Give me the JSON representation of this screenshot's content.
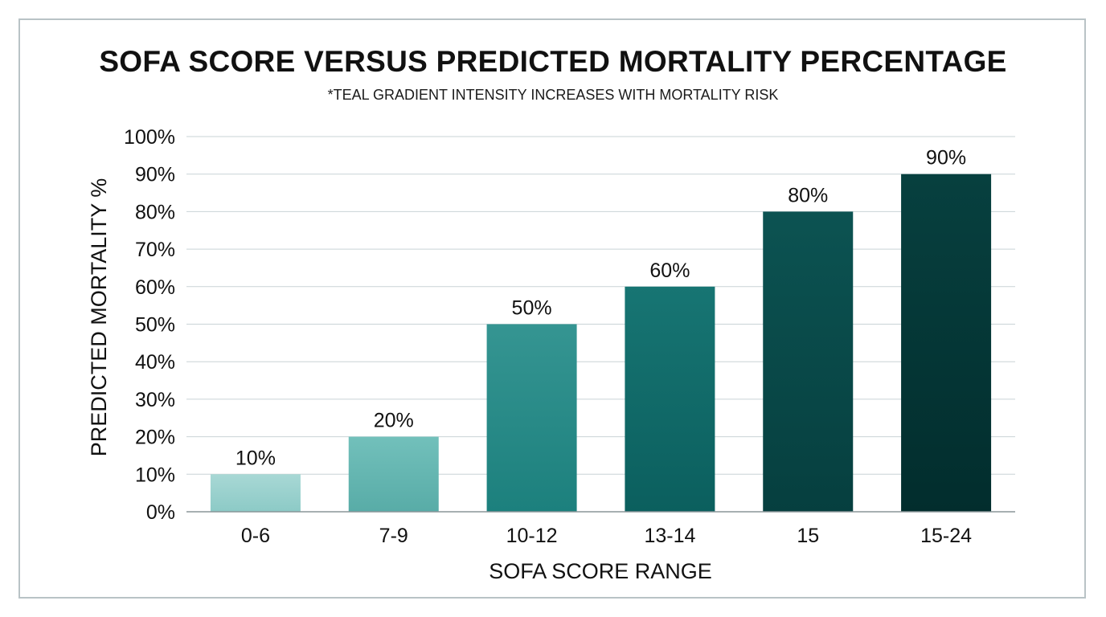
{
  "chart_data": {
    "type": "bar",
    "title": "SOFA SCORE VERSUS PREDICTED MORTALITY PERCENTAGE",
    "subtitle": "*TEAL GRADIENT INTENSITY INCREASES WITH MORTALITY RISK",
    "xlabel": "SOFA SCORE RANGE",
    "ylabel": "PREDICTED MORTALITY %",
    "categories": [
      "0-6",
      "7-9",
      "10-12",
      "13-14",
      "15",
      "15-24"
    ],
    "values": [
      10,
      20,
      50,
      60,
      80,
      90
    ],
    "value_labels": [
      "10%",
      "20%",
      "50%",
      "60%",
      "80%",
      "90%"
    ],
    "ylim": [
      0,
      100
    ],
    "yticks": [
      0,
      10,
      20,
      30,
      40,
      50,
      60,
      70,
      80,
      90,
      100
    ],
    "ytick_labels": [
      "0%",
      "10%",
      "20%",
      "30%",
      "40%",
      "50%",
      "60%",
      "70%",
      "80%",
      "90%",
      "100%"
    ],
    "grid": true,
    "legend": "none",
    "bar_colors": [
      [
        "#a8d8d5",
        "#8ccac6"
      ],
      [
        "#72c0bb",
        "#58aca7"
      ],
      [
        "#359592",
        "#1c807d"
      ],
      [
        "#177573",
        "#0b5f5e"
      ],
      [
        "#0c5352",
        "#063f3f"
      ],
      [
        "#07403f",
        "#022d2d"
      ]
    ],
    "gridline_color": "#c9d3d6",
    "axis_color": "#8a9699"
  }
}
